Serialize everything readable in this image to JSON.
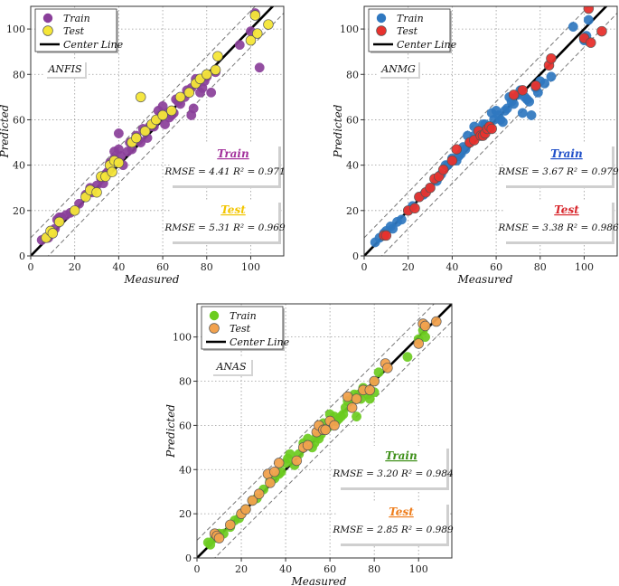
{
  "figure": {
    "xlabel": "Measured",
    "ylabel": "Predicted",
    "legend_center": "Center Line",
    "train_word": "Train",
    "test_word": "Test"
  },
  "chart_data": [
    {
      "type": "scatter",
      "model": "ANFIS",
      "xlim": [
        0,
        115
      ],
      "ylim": [
        0,
        110
      ],
      "xticks": [
        "0",
        "20",
        "40",
        "60",
        "80",
        "100"
      ],
      "yticks": [
        "0",
        "20",
        "40",
        "60",
        "80",
        "100"
      ],
      "train_color": "#8a3f9a",
      "test_color": "#f5e637",
      "stat_title_train_color": "#a3319c",
      "stat_title_test_color": "#f2c500",
      "train_rmse_text": "RMSE = 4.41  R² = 0.971",
      "test_rmse_text": "RMSE = 5.31  R² = 0.969",
      "train": [
        [
          5,
          7
        ],
        [
          7,
          8
        ],
        [
          8,
          8
        ],
        [
          10,
          10
        ],
        [
          11,
          12
        ],
        [
          12,
          16
        ],
        [
          13,
          17
        ],
        [
          14,
          17
        ],
        [
          16,
          18
        ],
        [
          18,
          19
        ],
        [
          20,
          20
        ],
        [
          22,
          23
        ],
        [
          25,
          27
        ],
        [
          27,
          30
        ],
        [
          28,
          28
        ],
        [
          30,
          31
        ],
        [
          32,
          34
        ],
        [
          33,
          32
        ],
        [
          34,
          36
        ],
        [
          35,
          37
        ],
        [
          36,
          41
        ],
        [
          38,
          43
        ],
        [
          38,
          46
        ],
        [
          40,
          47
        ],
        [
          40,
          54
        ],
        [
          41,
          44
        ],
        [
          42,
          40
        ],
        [
          44,
          46
        ],
        [
          45,
          50
        ],
        [
          46,
          47
        ],
        [
          48,
          53
        ],
        [
          49,
          51
        ],
        [
          50,
          50
        ],
        [
          51,
          56
        ],
        [
          52,
          55
        ],
        [
          53,
          52
        ],
        [
          54,
          57
        ],
        [
          55,
          58
        ],
        [
          56,
          57
        ],
        [
          57,
          60
        ],
        [
          58,
          64
        ],
        [
          59,
          62
        ],
        [
          60,
          66
        ],
        [
          61,
          58
        ],
        [
          62,
          63
        ],
        [
          63,
          61
        ],
        [
          64,
          62
        ],
        [
          65,
          63
        ],
        [
          66,
          69
        ],
        [
          67,
          68
        ],
        [
          68,
          67
        ],
        [
          70,
          70
        ],
        [
          71,
          73
        ],
        [
          72,
          72
        ],
        [
          73,
          74
        ],
        [
          74,
          65
        ],
        [
          75,
          78
        ],
        [
          76,
          76
        ],
        [
          77,
          72
        ],
        [
          78,
          74
        ],
        [
          79,
          77
        ],
        [
          80,
          79
        ],
        [
          82,
          72
        ],
        [
          84,
          81
        ],
        [
          95,
          93
        ],
        [
          100,
          99
        ],
        [
          102,
          107
        ],
        [
          104,
          83
        ],
        [
          73,
          62
        ]
      ],
      "test": [
        [
          7,
          8
        ],
        [
          9,
          11
        ],
        [
          10,
          10
        ],
        [
          13,
          15
        ],
        [
          20,
          20
        ],
        [
          25,
          26
        ],
        [
          27,
          29
        ],
        [
          30,
          28
        ],
        [
          32,
          35
        ],
        [
          34,
          35
        ],
        [
          36,
          40
        ],
        [
          37,
          37
        ],
        [
          38,
          42
        ],
        [
          40,
          41
        ],
        [
          46,
          50
        ],
        [
          48,
          52
        ],
        [
          50,
          70
        ],
        [
          52,
          55
        ],
        [
          55,
          58
        ],
        [
          57,
          60
        ],
        [
          60,
          62
        ],
        [
          64,
          64
        ],
        [
          68,
          70
        ],
        [
          72,
          72
        ],
        [
          75,
          76
        ],
        [
          77,
          78
        ],
        [
          80,
          80
        ],
        [
          84,
          82
        ],
        [
          85,
          88
        ],
        [
          100,
          95
        ],
        [
          102,
          106
        ],
        [
          103,
          98
        ],
        [
          108,
          102
        ]
      ]
    },
    {
      "type": "scatter",
      "model": "ANMG",
      "xlim": [
        0,
        115
      ],
      "ylim": [
        0,
        110
      ],
      "xticks": [
        "0",
        "20",
        "40",
        "60",
        "80",
        "100"
      ],
      "yticks": [
        "0",
        "20",
        "40",
        "60",
        "80",
        "100"
      ],
      "train_color": "#2f78c0",
      "test_color": "#e8322e",
      "stat_title_train_color": "#1f4fc8",
      "stat_title_test_color": "#d8262c",
      "train_rmse_text": "RMSE = 3.67  R² = 0.979",
      "test_rmse_text": "RMSE = 3.38  R² = 0.986",
      "train": [
        [
          5,
          6
        ],
        [
          7,
          8
        ],
        [
          9,
          10
        ],
        [
          10,
          11
        ],
        [
          12,
          13
        ],
        [
          13,
          12
        ],
        [
          15,
          15
        ],
        [
          17,
          16
        ],
        [
          20,
          20
        ],
        [
          22,
          22
        ],
        [
          25,
          26
        ],
        [
          27,
          27
        ],
        [
          30,
          30
        ],
        [
          33,
          33
        ],
        [
          35,
          36
        ],
        [
          37,
          40
        ],
        [
          38,
          40
        ],
        [
          40,
          43
        ],
        [
          42,
          42
        ],
        [
          43,
          44
        ],
        [
          44,
          45
        ],
        [
          45,
          48
        ],
        [
          46,
          47
        ],
        [
          47,
          53
        ],
        [
          48,
          50
        ],
        [
          50,
          57
        ],
        [
          50,
          53
        ],
        [
          52,
          55
        ],
        [
          53,
          54
        ],
        [
          54,
          58
        ],
        [
          55,
          58
        ],
        [
          56,
          57
        ],
        [
          57,
          56
        ],
        [
          58,
          63
        ],
        [
          59,
          60
        ],
        [
          60,
          64
        ],
        [
          61,
          62
        ],
        [
          62,
          60
        ],
        [
          63,
          59
        ],
        [
          64,
          64
        ],
        [
          65,
          65
        ],
        [
          66,
          70
        ],
        [
          67,
          68
        ],
        [
          68,
          67
        ],
        [
          70,
          71
        ],
        [
          71,
          73
        ],
        [
          72,
          63
        ],
        [
          73,
          70
        ],
        [
          74,
          69
        ],
        [
          75,
          68
        ],
        [
          76,
          62
        ],
        [
          78,
          74
        ],
        [
          79,
          72
        ],
        [
          80,
          77
        ],
        [
          82,
          76
        ],
        [
          85,
          79
        ],
        [
          95,
          101
        ],
        [
          100,
          95
        ],
        [
          102,
          104
        ],
        [
          101,
          97
        ]
      ],
      "test": [
        [
          9,
          9
        ],
        [
          10,
          9
        ],
        [
          20,
          20
        ],
        [
          23,
          21
        ],
        [
          25,
          26
        ],
        [
          28,
          28
        ],
        [
          30,
          30
        ],
        [
          32,
          34
        ],
        [
          34,
          35
        ],
        [
          36,
          38
        ],
        [
          40,
          42
        ],
        [
          42,
          47
        ],
        [
          48,
          50
        ],
        [
          50,
          51
        ],
        [
          52,
          55
        ],
        [
          53,
          53
        ],
        [
          54,
          53
        ],
        [
          55,
          54
        ],
        [
          56,
          56
        ],
        [
          57,
          57
        ],
        [
          58,
          56
        ],
        [
          68,
          71
        ],
        [
          72,
          73
        ],
        [
          78,
          75
        ],
        [
          84,
          84
        ],
        [
          85,
          87
        ],
        [
          100,
          96
        ],
        [
          102,
          109
        ],
        [
          103,
          94
        ],
        [
          108,
          99
        ]
      ]
    },
    {
      "type": "scatter",
      "model": "ANAS",
      "xlim": [
        0,
        115
      ],
      "ylim": [
        0,
        115
      ],
      "xticks": [
        "0",
        "20",
        "40",
        "60",
        "80",
        "100"
      ],
      "yticks": [
        "0",
        "20",
        "40",
        "60",
        "80",
        "100"
      ],
      "train_color": "#6ccc1f",
      "test_color": "#f2a24e",
      "stat_title_train_color": "#3d8f18",
      "stat_title_test_color": "#ee7d1c",
      "train_rmse_text": "RMSE = 3.20  R² = 0.984",
      "test_rmse_text": "RMSE = 2.85  R² = 0.989",
      "train": [
        [
          5,
          7
        ],
        [
          6,
          6
        ],
        [
          8,
          9
        ],
        [
          10,
          11
        ],
        [
          12,
          11
        ],
        [
          15,
          14
        ],
        [
          17,
          17
        ],
        [
          19,
          18
        ],
        [
          20,
          20
        ],
        [
          22,
          22
        ],
        [
          25,
          26
        ],
        [
          27,
          27
        ],
        [
          30,
          31
        ],
        [
          33,
          35
        ],
        [
          35,
          36
        ],
        [
          37,
          38
        ],
        [
          38,
          39
        ],
        [
          40,
          43
        ],
        [
          41,
          45
        ],
        [
          42,
          47
        ],
        [
          44,
          42
        ],
        [
          46,
          47
        ],
        [
          48,
          52
        ],
        [
          50,
          54
        ],
        [
          52,
          50
        ],
        [
          53,
          52
        ],
        [
          54,
          55
        ],
        [
          55,
          54
        ],
        [
          56,
          56
        ],
        [
          57,
          61
        ],
        [
          58,
          58
        ],
        [
          59,
          59
        ],
        [
          60,
          65
        ],
        [
          61,
          62
        ],
        [
          62,
          64
        ],
        [
          63,
          62
        ],
        [
          64,
          63
        ],
        [
          65,
          64
        ],
        [
          66,
          65
        ],
        [
          67,
          68
        ],
        [
          68,
          71
        ],
        [
          70,
          72
        ],
        [
          71,
          74
        ],
        [
          72,
          72
        ],
        [
          73,
          74
        ],
        [
          74,
          72
        ],
        [
          75,
          77
        ],
        [
          77,
          74
        ],
        [
          78,
          72
        ],
        [
          80,
          75
        ],
        [
          80,
          80
        ],
        [
          82,
          84
        ],
        [
          95,
          91
        ],
        [
          100,
          99
        ],
        [
          102,
          103
        ],
        [
          103,
          100
        ],
        [
          72,
          64
        ]
      ],
      "test": [
        [
          8,
          11
        ],
        [
          9,
          10
        ],
        [
          10,
          9
        ],
        [
          15,
          15
        ],
        [
          20,
          20
        ],
        [
          22,
          22
        ],
        [
          25,
          26
        ],
        [
          28,
          29
        ],
        [
          32,
          38
        ],
        [
          33,
          34
        ],
        [
          35,
          39
        ],
        [
          37,
          43
        ],
        [
          45,
          44
        ],
        [
          48,
          50
        ],
        [
          50,
          51
        ],
        [
          54,
          57
        ],
        [
          55,
          60
        ],
        [
          57,
          58
        ],
        [
          58,
          58
        ],
        [
          60,
          62
        ],
        [
          62,
          60
        ],
        [
          68,
          73
        ],
        [
          70,
          68
        ],
        [
          72,
          72
        ],
        [
          75,
          76
        ],
        [
          78,
          76
        ],
        [
          80,
          80
        ],
        [
          85,
          88
        ],
        [
          86,
          86
        ],
        [
          100,
          97
        ],
        [
          102,
          106
        ],
        [
          103,
          105
        ],
        [
          108,
          107
        ]
      ]
    }
  ]
}
